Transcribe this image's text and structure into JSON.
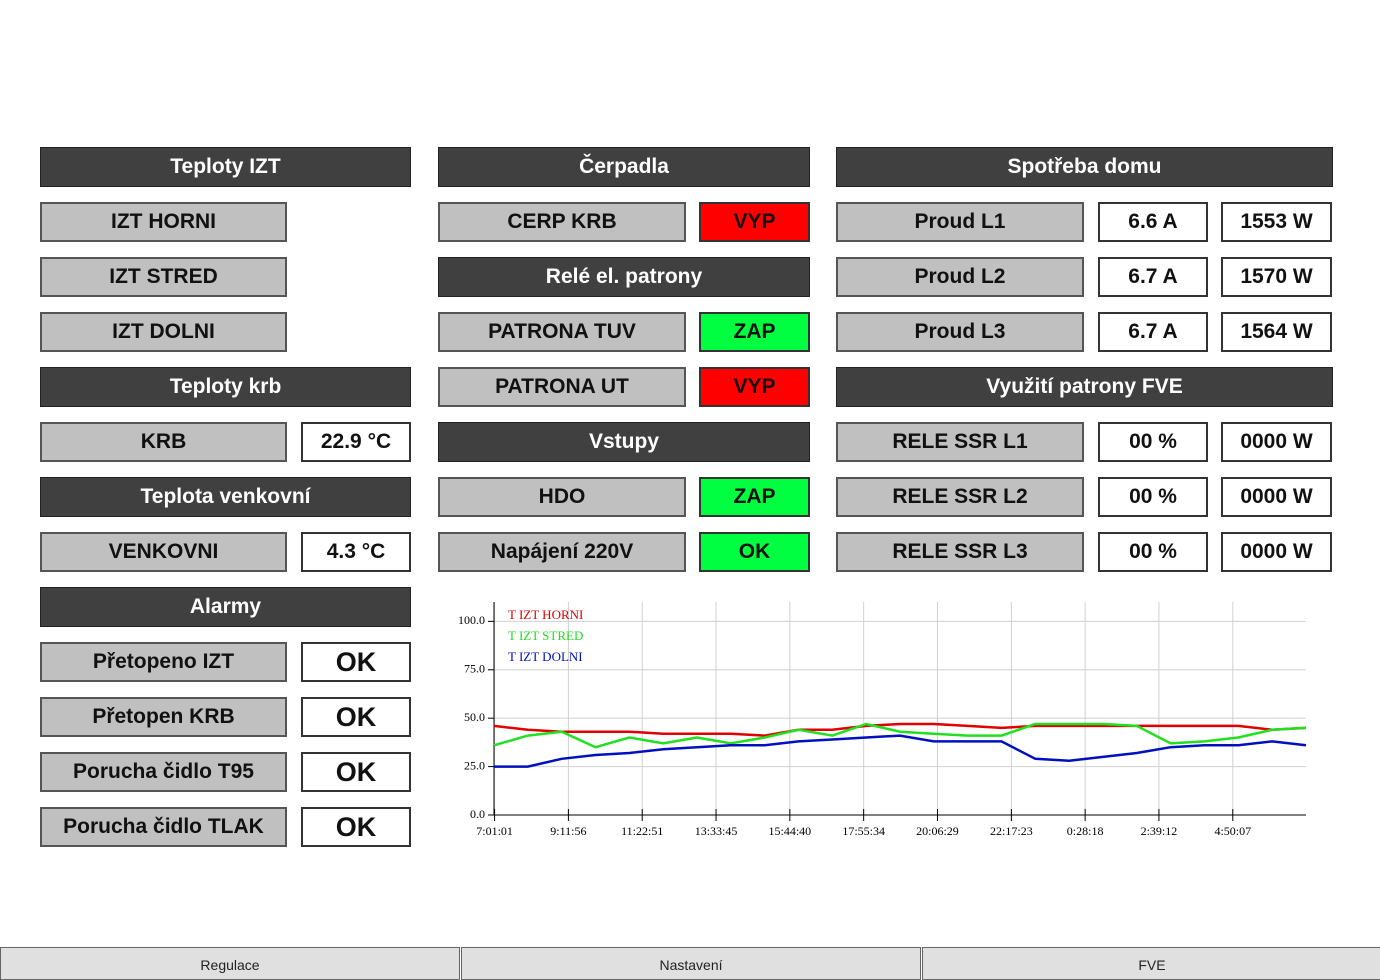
{
  "columns": [
    {
      "items": [
        {
          "header": "Teploty IZT"
        },
        {
          "label": "IZT HORNI"
        },
        {
          "label": "IZT STRED"
        },
        {
          "label": "IZT DOLNI"
        },
        {
          "header": "Teploty krb"
        },
        {
          "label": "KRB",
          "values": [
            "22.9 °C"
          ]
        },
        {
          "header": "Teplota venkovní"
        },
        {
          "label": "VENKOVNI",
          "values": [
            "4.3 °C"
          ]
        },
        {
          "header": "Alarmy"
        },
        {
          "label": "Přetopeno IZT",
          "values": [
            "OK"
          ]
        },
        {
          "label": "Přetopen KRB",
          "values": [
            "OK"
          ]
        },
        {
          "label": "Porucha čidlo T95",
          "values": [
            "OK"
          ]
        },
        {
          "label": "Porucha čidlo TLAK",
          "values": [
            "OK"
          ]
        }
      ]
    },
    {
      "items": [
        {
          "header": "Čerpadla"
        },
        {
          "label": "CERP KRB",
          "values": [
            "VYP"
          ],
          "color": "#ff0000"
        },
        {
          "header": "Relé el. patrony"
        },
        {
          "label": "PATRONA TUV",
          "values": [
            "ZAP"
          ],
          "color": "#00ff40"
        },
        {
          "label": "PATRONA UT",
          "values": [
            "VYP"
          ],
          "color": "#ff0000"
        },
        {
          "header": "Vstupy"
        },
        {
          "label": "HDO",
          "values": [
            "ZAP"
          ],
          "color": "#00ff40"
        },
        {
          "label": "Napájení 220V",
          "values": [
            "OK"
          ],
          "color": "#00ff40"
        }
      ]
    },
    {
      "items": [
        {
          "header": "Spotřeba domu"
        },
        {
          "label": "Proud L1",
          "values": [
            "6.6 A",
            "1553 W"
          ]
        },
        {
          "label": "Proud L2",
          "values": [
            "6.7 A",
            "1570 W"
          ]
        },
        {
          "label": "Proud L3",
          "values": [
            "6.7 A",
            "1564 W"
          ]
        },
        {
          "header": "Využití patrony FVE"
        },
        {
          "label": "RELE SSR L1",
          "values": [
            "00 %",
            "0000 W"
          ]
        },
        {
          "label": "RELE SSR L2",
          "values": [
            "00 %",
            "0000 W"
          ]
        },
        {
          "label": "RELE SSR L3",
          "values": [
            "00 %",
            "0000 W"
          ]
        }
      ]
    }
  ],
  "chart_data": {
    "type": "line",
    "x": [
      7,
      8,
      9,
      10,
      11,
      12,
      13,
      14,
      15,
      16,
      17,
      18,
      19,
      20,
      21,
      22,
      23,
      24,
      25,
      26,
      27,
      28,
      29,
      30,
      31
    ],
    "xlim": [
      7,
      31
    ],
    "xticks": [
      {
        "value": 7.017,
        "label": "7:01:01"
      },
      {
        "value": 9.199,
        "label": "9:11:56"
      },
      {
        "value": 11.381,
        "label": "11:22:51"
      },
      {
        "value": 13.563,
        "label": "13:33:45"
      },
      {
        "value": 15.744,
        "label": "15:44:40"
      },
      {
        "value": 17.926,
        "label": "17:55:34"
      },
      {
        "value": 20.108,
        "label": "20:06:29"
      },
      {
        "value": 22.292,
        "label": "22:17:23"
      },
      {
        "value": 24.472,
        "label": "0:28:18"
      },
      {
        "value": 26.653,
        "label": "2:39:12"
      },
      {
        "value": 28.836,
        "label": "4:50:07"
      }
    ],
    "ylim": [
      0,
      110
    ],
    "yticks": [
      {
        "value": 0,
        "label": "0.0"
      },
      {
        "value": 25,
        "label": "25.0"
      },
      {
        "value": 50,
        "label": "50.0"
      },
      {
        "value": 75,
        "label": "75.0"
      },
      {
        "value": 100,
        "label": "100.0"
      }
    ],
    "grid": true,
    "series": [
      {
        "name": "T IZT HORNI",
        "color": "#e00000",
        "values": [
          46,
          44,
          43,
          43,
          43,
          42,
          42,
          42,
          41,
          44,
          44,
          46,
          47,
          47,
          46,
          45,
          46,
          46,
          46,
          46,
          46,
          46,
          46,
          44,
          45
        ]
      },
      {
        "name": "T IZT STRED",
        "color": "#20e020",
        "values": [
          36,
          41,
          43,
          35,
          40,
          37,
          40,
          37,
          40,
          44,
          41,
          47,
          43,
          42,
          41,
          41,
          47,
          47,
          47,
          46,
          37,
          38,
          40,
          44,
          45
        ]
      },
      {
        "name": "T IZT DOLNI",
        "color": "#0010c0",
        "values": [
          25,
          25,
          29,
          31,
          32,
          34,
          35,
          36,
          36,
          38,
          39,
          40,
          41,
          38,
          38,
          38,
          29,
          28,
          30,
          32,
          35,
          36,
          36,
          38,
          36
        ]
      }
    ]
  },
  "tabs": [
    "Regulace",
    "Nastavení",
    "FVE"
  ]
}
